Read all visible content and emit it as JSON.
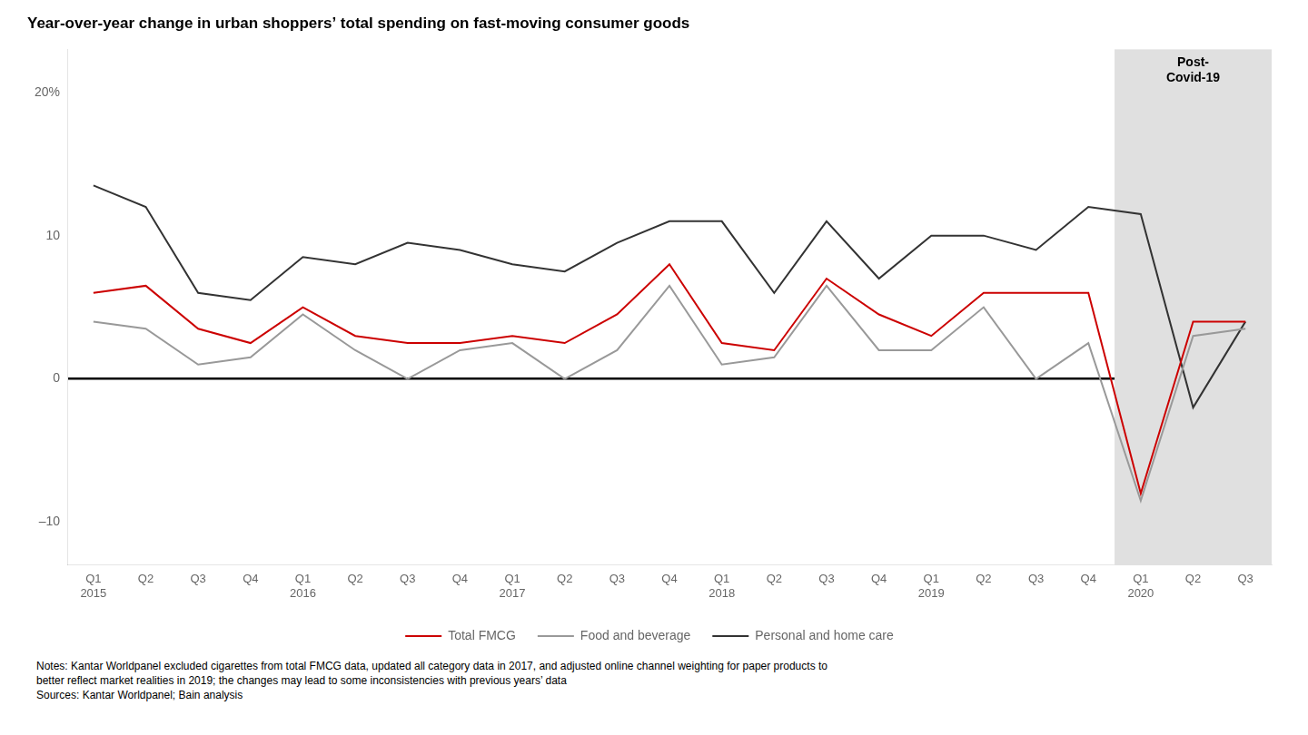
{
  "chart_data": {
    "type": "line",
    "title": "Year-over-year change in urban shoppers’ total spending on fast-moving consumer goods",
    "categories": [
      "Q1",
      "Q2",
      "Q3",
      "Q4",
      "Q1",
      "Q2",
      "Q3",
      "Q4",
      "Q1",
      "Q2",
      "Q3",
      "Q4",
      "Q1",
      "Q2",
      "Q3",
      "Q4",
      "Q1",
      "Q2",
      "Q3",
      "Q4",
      "Q1",
      "Q2",
      "Q3"
    ],
    "category_groups": [
      "2015",
      null,
      null,
      null,
      "2016",
      null,
      null,
      null,
      "2017",
      null,
      null,
      null,
      "2018",
      null,
      null,
      null,
      "2019",
      null,
      null,
      null,
      "2020",
      null,
      null
    ],
    "series": [
      {
        "name": "Total FMCG",
        "color": "#cc0000",
        "values": [
          6.0,
          6.5,
          3.5,
          2.5,
          5.0,
          3.0,
          2.5,
          2.5,
          3.0,
          2.5,
          4.5,
          8.0,
          2.5,
          2.0,
          7.0,
          4.5,
          3.0,
          6.0,
          6.0,
          6.0,
          -8.0,
          4.0,
          4.0
        ]
      },
      {
        "name": "Food and beverage",
        "color": "#999999",
        "values": [
          4.0,
          3.5,
          1.0,
          1.5,
          4.5,
          2.0,
          0.0,
          2.0,
          2.5,
          0.0,
          2.0,
          6.5,
          1.0,
          1.5,
          6.5,
          2.0,
          2.0,
          5.0,
          0.0,
          2.5,
          -8.5,
          3.0,
          3.5
        ]
      },
      {
        "name": "Personal and home care",
        "color": "#333333",
        "values": [
          13.5,
          12.0,
          6.0,
          5.5,
          8.5,
          8.0,
          9.5,
          9.0,
          8.0,
          7.5,
          9.5,
          11.0,
          11.0,
          6.0,
          11.0,
          7.0,
          10.0,
          10.0,
          9.0,
          12.0,
          11.5,
          -2.0,
          4.0
        ]
      }
    ],
    "ylim": [
      -13,
      23
    ],
    "yticks": [
      {
        "value": -10,
        "label": "–10"
      },
      0,
      10,
      {
        "value": 20,
        "label": "20%"
      }
    ],
    "grid": false,
    "legend": "bottom",
    "region": {
      "label": "Post-\nCovid-19",
      "from": 20,
      "to": 22,
      "color": "#e0e0e0"
    },
    "notes": [
      "Notes: Kantar Worldpanel excluded cigarettes from total FMCG data, updated all category data in 2017, and adjusted online channel weighting for paper products to",
      "better reflect market realities in 2019; the changes may lead to some inconsistencies with previous years’ data",
      "Sources: Kantar Worldpanel; Bain analysis"
    ]
  }
}
